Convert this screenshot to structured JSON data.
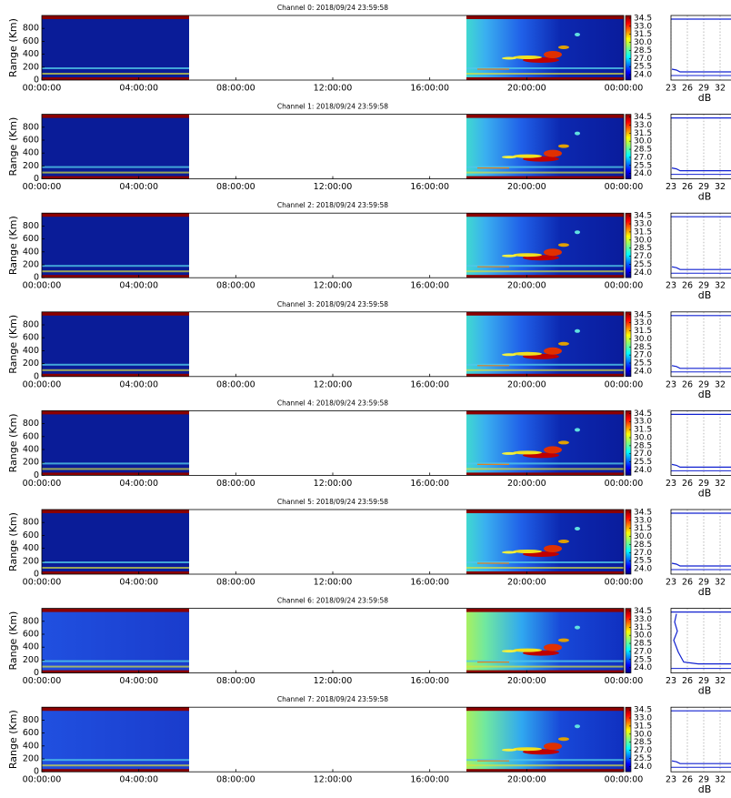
{
  "chart_data": [
    {
      "type": "heatmap",
      "title": "Channel 0: 2018/09/24 23:59:58",
      "ylabel": "Range (Km)",
      "xlim": [
        0,
        24
      ],
      "xticks": [
        {
          "value": 0,
          "label": "00:00:00"
        },
        {
          "value": 4,
          "label": "04:00:00"
        },
        {
          "value": 8,
          "label": "08:00:00"
        },
        {
          "value": 12,
          "label": "12:00:00"
        },
        {
          "value": 16,
          "label": "16:00:00"
        },
        {
          "value": 20,
          "label": "20:00:00"
        },
        {
          "value": 24,
          "label": "00:00:00"
        }
      ],
      "ylim": [
        0,
        1000
      ],
      "yticks": [
        0,
        200,
        400,
        600,
        800
      ],
      "clim": [
        23,
        35
      ],
      "cticks": [
        {
          "value": 24,
          "label": "24.0"
        },
        25.5,
        {
          "value": 27,
          "label": "27.0"
        },
        28.5,
        {
          "value": 30,
          "label": "30.0"
        },
        31.5,
        {
          "value": 33,
          "label": "33.0"
        },
        34.5
      ],
      "profile": {
        "xlabel": "dB",
        "xlim": [
          23,
          35
        ],
        "xticks": [
          23,
          26,
          29,
          32
        ]
      }
    },
    {
      "type": "heatmap",
      "title": "Channel 1: 2018/09/24 23:59:58",
      "ylabel": "Range (Km)",
      "xlim": [
        0,
        24
      ],
      "xticks": [
        {
          "value": 0,
          "label": "00:00:00"
        },
        {
          "value": 4,
          "label": "04:00:00"
        },
        {
          "value": 8,
          "label": "08:00:00"
        },
        {
          "value": 12,
          "label": "12:00:00"
        },
        {
          "value": 16,
          "label": "16:00:00"
        },
        {
          "value": 20,
          "label": "20:00:00"
        },
        {
          "value": 24,
          "label": "00:00:00"
        }
      ],
      "ylim": [
        0,
        1000
      ],
      "yticks": [
        0,
        200,
        400,
        600,
        800
      ],
      "clim": [
        23,
        35
      ],
      "cticks": [
        {
          "value": 24,
          "label": "24.0"
        },
        25.5,
        {
          "value": 27,
          "label": "27.0"
        },
        28.5,
        {
          "value": 30,
          "label": "30.0"
        },
        31.5,
        {
          "value": 33,
          "label": "33.0"
        },
        34.5
      ],
      "profile": {
        "xlabel": "dB",
        "xlim": [
          23,
          35
        ],
        "xticks": [
          23,
          26,
          29,
          32
        ]
      }
    },
    {
      "type": "heatmap",
      "title": "Channel 2: 2018/09/24 23:59:58",
      "ylabel": "Range (Km)",
      "xlim": [
        0,
        24
      ],
      "xticks": [
        {
          "value": 0,
          "label": "00:00:00"
        },
        {
          "value": 4,
          "label": "04:00:00"
        },
        {
          "value": 8,
          "label": "08:00:00"
        },
        {
          "value": 12,
          "label": "12:00:00"
        },
        {
          "value": 16,
          "label": "16:00:00"
        },
        {
          "value": 20,
          "label": "20:00:00"
        },
        {
          "value": 24,
          "label": "00:00:00"
        }
      ],
      "ylim": [
        0,
        1000
      ],
      "yticks": [
        0,
        200,
        400,
        600,
        800
      ],
      "clim": [
        23,
        35
      ],
      "cticks": [
        {
          "value": 24,
          "label": "24.0"
        },
        25.5,
        {
          "value": 27,
          "label": "27.0"
        },
        28.5,
        {
          "value": 30,
          "label": "30.0"
        },
        31.5,
        {
          "value": 33,
          "label": "33.0"
        },
        34.5
      ],
      "profile": {
        "xlabel": "dB",
        "xlim": [
          23,
          35
        ],
        "xticks": [
          23,
          26,
          29,
          32
        ]
      }
    },
    {
      "type": "heatmap",
      "title": "Channel 3: 2018/09/24 23:59:58",
      "ylabel": "Range (Km)",
      "xlim": [
        0,
        24
      ],
      "xticks": [
        {
          "value": 0,
          "label": "00:00:00"
        },
        {
          "value": 4,
          "label": "04:00:00"
        },
        {
          "value": 8,
          "label": "08:00:00"
        },
        {
          "value": 12,
          "label": "12:00:00"
        },
        {
          "value": 16,
          "label": "16:00:00"
        },
        {
          "value": 20,
          "label": "20:00:00"
        },
        {
          "value": 24,
          "label": "00:00:00"
        }
      ],
      "ylim": [
        0,
        1000
      ],
      "yticks": [
        0,
        200,
        400,
        600,
        800
      ],
      "clim": [
        23,
        35
      ],
      "cticks": [
        {
          "value": 24,
          "label": "24.0"
        },
        25.5,
        {
          "value": 27,
          "label": "27.0"
        },
        28.5,
        {
          "value": 30,
          "label": "30.0"
        },
        31.5,
        {
          "value": 33,
          "label": "33.0"
        },
        34.5
      ],
      "profile": {
        "xlabel": "dB",
        "xlim": [
          23,
          35
        ],
        "xticks": [
          23,
          26,
          29,
          32
        ]
      }
    },
    {
      "type": "heatmap",
      "title": "Channel 4: 2018/09/24 23:59:58",
      "ylabel": "Range (Km)",
      "xlim": [
        0,
        24
      ],
      "xticks": [
        {
          "value": 0,
          "label": "00:00:00"
        },
        {
          "value": 4,
          "label": "04:00:00"
        },
        {
          "value": 8,
          "label": "08:00:00"
        },
        {
          "value": 12,
          "label": "12:00:00"
        },
        {
          "value": 16,
          "label": "16:00:00"
        },
        {
          "value": 20,
          "label": "20:00:00"
        },
        {
          "value": 24,
          "label": "00:00:00"
        }
      ],
      "ylim": [
        0,
        1000
      ],
      "yticks": [
        0,
        200,
        400,
        600,
        800
      ],
      "clim": [
        23,
        35
      ],
      "cticks": [
        {
          "value": 24,
          "label": "24.0"
        },
        25.5,
        {
          "value": 27,
          "label": "27.0"
        },
        28.5,
        {
          "value": 30,
          "label": "30.0"
        },
        31.5,
        {
          "value": 33,
          "label": "33.0"
        },
        34.5
      ],
      "profile": {
        "xlabel": "dB",
        "xlim": [
          23,
          35
        ],
        "xticks": [
          23,
          26,
          29,
          32
        ]
      }
    },
    {
      "type": "heatmap",
      "title": "Channel 5: 2018/09/24 23:59:58",
      "ylabel": "Range (Km)",
      "xlim": [
        0,
        24
      ],
      "xticks": [
        {
          "value": 0,
          "label": "00:00:00"
        },
        {
          "value": 4,
          "label": "04:00:00"
        },
        {
          "value": 8,
          "label": "08:00:00"
        },
        {
          "value": 12,
          "label": "12:00:00"
        },
        {
          "value": 16,
          "label": "16:00:00"
        },
        {
          "value": 20,
          "label": "20:00:00"
        },
        {
          "value": 24,
          "label": "00:00:00"
        }
      ],
      "ylim": [
        0,
        1000
      ],
      "yticks": [
        0,
        200,
        400,
        600,
        800
      ],
      "clim": [
        23,
        35
      ],
      "cticks": [
        {
          "value": 24,
          "label": "24.0"
        },
        25.5,
        {
          "value": 27,
          "label": "27.0"
        },
        28.5,
        {
          "value": 30,
          "label": "30.0"
        },
        31.5,
        {
          "value": 33,
          "label": "33.0"
        },
        34.5
      ],
      "profile": {
        "xlabel": "dB",
        "xlim": [
          23,
          35
        ],
        "xticks": [
          23,
          26,
          29,
          32
        ]
      }
    },
    {
      "type": "heatmap",
      "title": "Channel 6: 2018/09/24 23:59:58",
      "ylabel": "Range (Km)",
      "xlim": [
        0,
        24
      ],
      "xticks": [
        {
          "value": 0,
          "label": "00:00:00"
        },
        {
          "value": 4,
          "label": "04:00:00"
        },
        {
          "value": 8,
          "label": "08:00:00"
        },
        {
          "value": 12,
          "label": "12:00:00"
        },
        {
          "value": 16,
          "label": "16:00:00"
        },
        {
          "value": 20,
          "label": "20:00:00"
        },
        {
          "value": 24,
          "label": "00:00:00"
        }
      ],
      "ylim": [
        0,
        1000
      ],
      "yticks": [
        0,
        200,
        400,
        600,
        800
      ],
      "clim": [
        23,
        35
      ],
      "cticks": [
        {
          "value": 24,
          "label": "24.0"
        },
        25.5,
        {
          "value": 27,
          "label": "27.0"
        },
        28.5,
        {
          "value": 30,
          "label": "30.0"
        },
        31.5,
        {
          "value": 33,
          "label": "33.0"
        },
        34.5
      ],
      "profile": {
        "xlabel": "dB",
        "xlim": [
          23,
          35
        ],
        "xticks": [
          23,
          26,
          29,
          32
        ]
      }
    },
    {
      "type": "heatmap",
      "title": "Channel 7: 2018/09/24 23:59:58",
      "ylabel": "Range (Km)",
      "xlim": [
        0,
        24
      ],
      "xticks": [
        {
          "value": 0,
          "label": "00:00:00"
        },
        {
          "value": 4,
          "label": "04:00:00"
        },
        {
          "value": 8,
          "label": "08:00:00"
        },
        {
          "value": 12,
          "label": "12:00:00"
        },
        {
          "value": 16,
          "label": "16:00:00"
        },
        {
          "value": 20,
          "label": "20:00:00"
        },
        {
          "value": 24,
          "label": "00:00:00"
        }
      ],
      "ylim": [
        0,
        1000
      ],
      "yticks": [
        0,
        200,
        400,
        600,
        800
      ],
      "clim": [
        23,
        35
      ],
      "cticks": [
        {
          "value": 24,
          "label": "24.0"
        },
        25.5,
        {
          "value": 27,
          "label": "27.0"
        },
        28.5,
        {
          "value": 30,
          "label": "30.0"
        },
        31.5,
        {
          "value": 33,
          "label": "33.0"
        },
        34.5
      ],
      "profile": {
        "xlabel": "dB",
        "xlim": [
          23,
          35
        ],
        "xticks": [
          23,
          26,
          29,
          32
        ]
      }
    }
  ]
}
